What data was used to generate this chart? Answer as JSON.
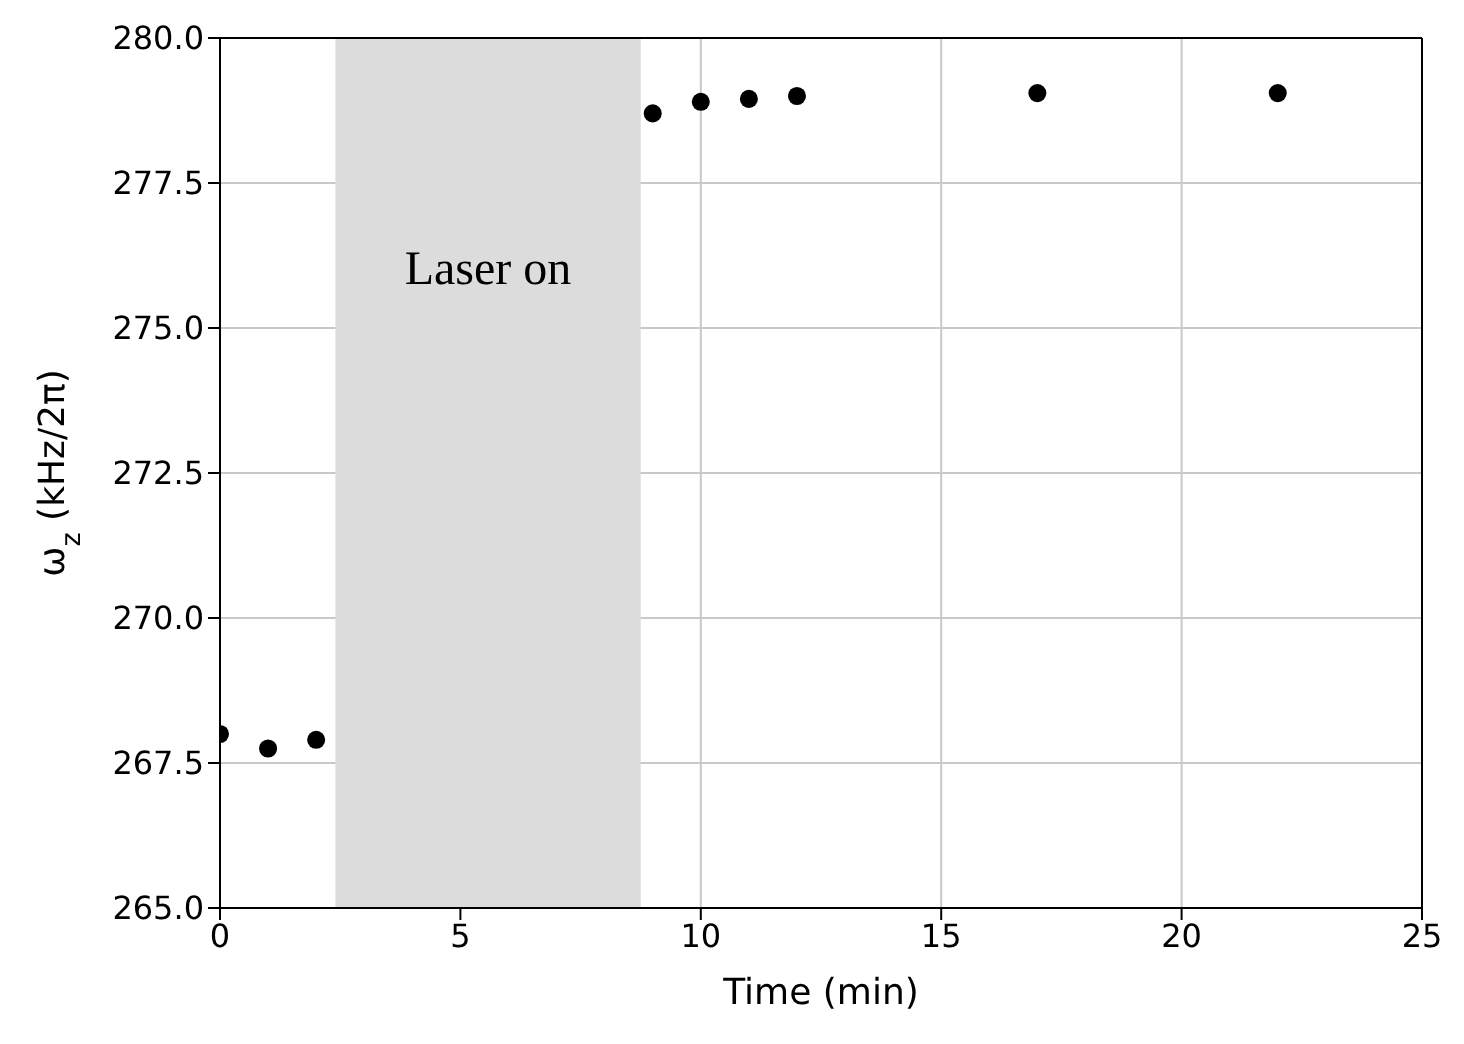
{
  "chart_data": {
    "type": "scatter",
    "xlabel": "Time (min)",
    "ylabel": "ω$_{z}$ (kHz/2π)",
    "x": [
      0,
      1,
      2,
      9,
      10,
      11,
      12,
      17,
      22
    ],
    "series": [
      {
        "color": "#000000",
        "values": [
          268.0,
          267.75,
          267.9,
          278.7,
          278.9,
          278.95,
          279.0,
          279.05,
          279.05
        ]
      }
    ],
    "xlim": [
      0,
      25
    ],
    "xticks": [
      0,
      5,
      10,
      15,
      20,
      25
    ],
    "ylim": [
      265,
      280
    ],
    "yticks": [
      {
        "value": 265,
        "label": "265.0"
      },
      {
        "value": 267.5,
        "label": "267.5"
      },
      {
        "value": 270,
        "label": "270.0"
      },
      {
        "value": 272.5,
        "label": "272.5"
      },
      {
        "value": 275,
        "label": "275.0"
      },
      {
        "value": 277.5,
        "label": "277.5"
      },
      {
        "value": 280,
        "label": "280.0"
      }
    ],
    "bands": [
      {
        "axis": "x",
        "from": 2.4,
        "to": 8.75,
        "label": "Laser on",
        "color": "#dcdcdc"
      }
    ],
    "grid": true,
    "marker": "circle"
  }
}
